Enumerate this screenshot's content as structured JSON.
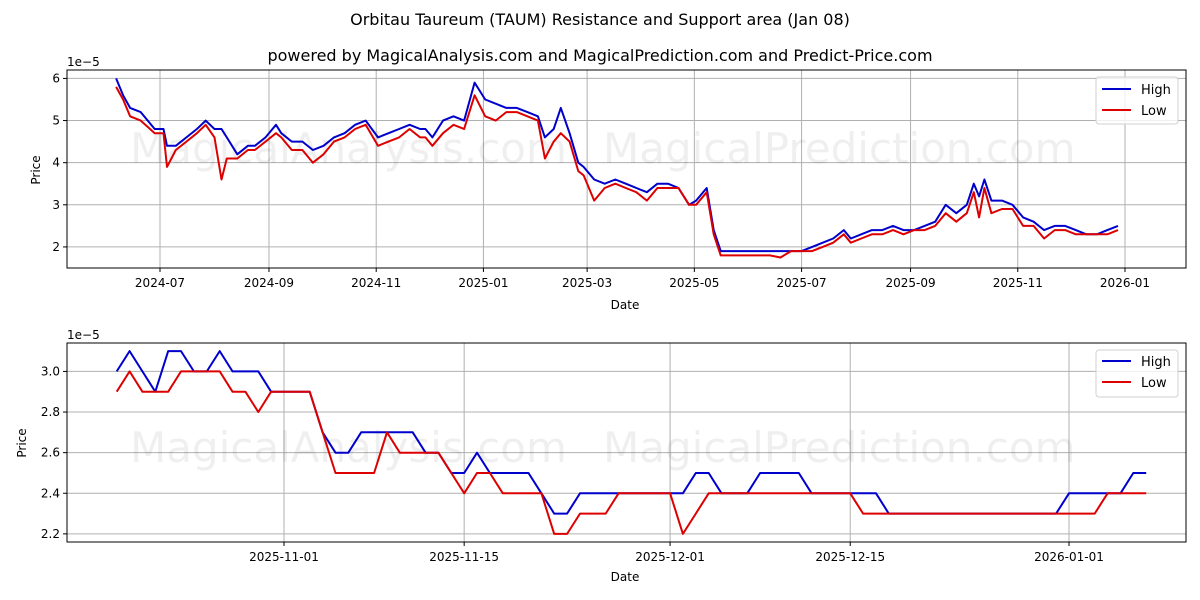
{
  "header": {
    "title": "Orbitau Taureum (TAUM) Resistance and Support area (Jan 08)",
    "subtitle": "powered by MagicalAnalysis.com and MagicalPrediction.com and Predict-Price.com"
  },
  "watermarks": [
    "MagicalAnalysis.com",
    "MagicalPrediction.com"
  ],
  "colors": {
    "high": "#0000cc",
    "low": "#dd0000",
    "grid": "#b0b0b0"
  },
  "chart_data": [
    {
      "type": "line",
      "title": "Orbitau Taureum (TAUM) Resistance and Support area (Jan 08)",
      "subtitle": "powered by MagicalAnalysis.com and MagicalPrediction.com and Predict-Price.com",
      "xlabel": "Date",
      "ylabel": "Price",
      "y_scale_label": "1e−5",
      "ylim": [
        1.5,
        6.2
      ],
      "yticks": [
        2,
        3,
        4,
        5,
        6
      ],
      "ytick_labels": [
        "2",
        "3",
        "4",
        "5",
        "6"
      ],
      "xticks": [
        "2024-07",
        "2024-09",
        "2024-11",
        "2025-01",
        "2025-03",
        "2025-05",
        "2025-07",
        "2025-09",
        "2025-11",
        "2026-01"
      ],
      "grid": true,
      "legend": {
        "position": "upper right",
        "entries": [
          "High",
          "Low"
        ]
      },
      "x": [
        "2024-06-06",
        "2024-06-10",
        "2024-06-14",
        "2024-06-20",
        "2024-06-28",
        "2024-07-03",
        "2024-07-05",
        "2024-07-10",
        "2024-07-16",
        "2024-07-22",
        "2024-07-27",
        "2024-08-01",
        "2024-08-05",
        "2024-08-08",
        "2024-08-14",
        "2024-08-20",
        "2024-08-24",
        "2024-08-30",
        "2024-09-05",
        "2024-09-08",
        "2024-09-14",
        "2024-09-20",
        "2024-09-26",
        "2024-10-02",
        "2024-10-08",
        "2024-10-14",
        "2024-10-20",
        "2024-10-26",
        "2024-11-02",
        "2024-11-08",
        "2024-11-14",
        "2024-11-20",
        "2024-11-26",
        "2024-11-29",
        "2024-12-03",
        "2024-12-09",
        "2024-12-15",
        "2024-12-21",
        "2024-12-27",
        "2025-01-02",
        "2025-01-08",
        "2025-01-14",
        "2025-01-20",
        "2025-01-26",
        "2025-02-01",
        "2025-02-05",
        "2025-02-10",
        "2025-02-14",
        "2025-02-19",
        "2025-02-24",
        "2025-02-27",
        "2025-03-05",
        "2025-03-11",
        "2025-03-17",
        "2025-03-23",
        "2025-03-29",
        "2025-04-04",
        "2025-04-10",
        "2025-04-16",
        "2025-04-22",
        "2025-04-28",
        "2025-05-02",
        "2025-05-08",
        "2025-05-12",
        "2025-05-16",
        "2025-05-20",
        "2025-05-26",
        "2025-06-01",
        "2025-06-07",
        "2025-06-13",
        "2025-06-19",
        "2025-06-25",
        "2025-07-01",
        "2025-07-07",
        "2025-07-13",
        "2025-07-19",
        "2025-07-25",
        "2025-07-29",
        "2025-08-04",
        "2025-08-10",
        "2025-08-16",
        "2025-08-22",
        "2025-08-28",
        "2025-09-03",
        "2025-09-09",
        "2025-09-15",
        "2025-09-21",
        "2025-09-27",
        "2025-10-03",
        "2025-10-07",
        "2025-10-10",
        "2025-10-13",
        "2025-10-17",
        "2025-10-23",
        "2025-10-29",
        "2025-11-04",
        "2025-11-10",
        "2025-11-16",
        "2025-11-22",
        "2025-11-28",
        "2025-12-04",
        "2025-12-10",
        "2025-12-16",
        "2025-12-22",
        "2025-12-28",
        "2026-01-03",
        "2026-01-07"
      ],
      "series": [
        {
          "name": "High",
          "color": "#0000cc",
          "values": [
            6.0,
            5.6,
            5.3,
            5.2,
            4.8,
            4.8,
            4.4,
            4.4,
            4.6,
            4.8,
            5.0,
            4.8,
            4.8,
            4.6,
            4.2,
            4.4,
            4.4,
            4.6,
            4.9,
            4.7,
            4.5,
            4.5,
            4.3,
            4.4,
            4.6,
            4.7,
            4.9,
            5.0,
            4.6,
            4.7,
            4.8,
            4.9,
            4.8,
            4.8,
            4.6,
            5.0,
            5.1,
            5.0,
            5.9,
            5.5,
            5.4,
            5.3,
            5.3,
            5.2,
            5.1,
            4.6,
            4.8,
            5.3,
            4.7,
            4.0,
            3.9,
            3.6,
            3.5,
            3.6,
            3.5,
            3.4,
            3.3,
            3.5,
            3.5,
            3.4,
            3.0,
            3.1,
            3.4,
            2.4,
            1.9,
            1.9,
            1.9,
            1.9,
            1.9,
            1.9,
            1.9,
            1.9,
            1.9,
            2.0,
            2.1,
            2.2,
            2.4,
            2.2,
            2.3,
            2.4,
            2.4,
            2.5,
            2.4,
            2.4,
            2.5,
            2.6,
            3.0,
            2.8,
            3.0,
            3.5,
            3.2,
            3.6,
            3.1,
            3.1,
            3.0,
            2.7,
            2.6,
            2.4,
            2.5,
            2.5,
            2.4,
            2.3,
            2.3,
            2.4,
            2.5
          ]
        },
        {
          "name": "Low",
          "color": "#dd0000",
          "values": [
            5.8,
            5.5,
            5.1,
            5.0,
            4.7,
            4.7,
            3.9,
            4.3,
            4.5,
            4.7,
            4.9,
            4.6,
            3.6,
            4.1,
            4.1,
            4.3,
            4.3,
            4.5,
            4.7,
            4.6,
            4.3,
            4.3,
            4.0,
            4.2,
            4.5,
            4.6,
            4.8,
            4.9,
            4.4,
            4.5,
            4.6,
            4.8,
            4.6,
            4.6,
            4.4,
            4.7,
            4.9,
            4.8,
            5.6,
            5.1,
            5.0,
            5.2,
            5.2,
            5.1,
            5.0,
            4.1,
            4.5,
            4.7,
            4.5,
            3.8,
            3.7,
            3.1,
            3.4,
            3.5,
            3.4,
            3.3,
            3.1,
            3.4,
            3.4,
            3.4,
            3.0,
            3.0,
            3.3,
            2.3,
            1.8,
            1.8,
            1.8,
            1.8,
            1.8,
            1.8,
            1.75,
            1.9,
            1.9,
            1.9,
            2.0,
            2.1,
            2.3,
            2.1,
            2.2,
            2.3,
            2.3,
            2.4,
            2.3,
            2.4,
            2.4,
            2.5,
            2.8,
            2.6,
            2.8,
            3.3,
            2.7,
            3.4,
            2.8,
            2.9,
            2.9,
            2.5,
            2.5,
            2.2,
            2.4,
            2.4,
            2.3,
            2.3,
            2.3,
            2.3,
            2.4
          ]
        }
      ]
    },
    {
      "type": "line",
      "xlabel": "Date",
      "ylabel": "Price",
      "y_scale_label": "1e−5",
      "ylim": [
        2.16,
        3.14
      ],
      "yticks": [
        2.2,
        2.4,
        2.6,
        2.8,
        3.0
      ],
      "ytick_labels": [
        "2.2",
        "2.4",
        "2.6",
        "2.8",
        "3.0"
      ],
      "xticks": [
        "2025-11-01",
        "2025-11-15",
        "2025-12-01",
        "2025-12-15",
        "2026-01-01"
      ],
      "grid": true,
      "legend": {
        "position": "upper right",
        "entries": [
          "High",
          "Low"
        ]
      },
      "x_start": "2025-10-19",
      "x_end": "2026-01-07",
      "series": [
        {
          "name": "High",
          "color": "#0000cc",
          "values": [
            3.0,
            3.1,
            3.0,
            2.9,
            3.1,
            3.1,
            3.0,
            3.0,
            3.1,
            3.0,
            3.0,
            3.0,
            2.9,
            2.9,
            2.9,
            2.9,
            2.7,
            2.6,
            2.6,
            2.7,
            2.7,
            2.7,
            2.7,
            2.7,
            2.6,
            2.6,
            2.5,
            2.5,
            2.6,
            2.5,
            2.5,
            2.5,
            2.5,
            2.4,
            2.3,
            2.3,
            2.4,
            2.4,
            2.4,
            2.4,
            2.4,
            2.4,
            2.4,
            2.4,
            2.4,
            2.5,
            2.5,
            2.4,
            2.4,
            2.4,
            2.5,
            2.5,
            2.5,
            2.5,
            2.4,
            2.4,
            2.4,
            2.4,
            2.4,
            2.4,
            2.3,
            2.3,
            2.3,
            2.3,
            2.3,
            2.3,
            2.3,
            2.3,
            2.3,
            2.3,
            2.3,
            2.3,
            2.3,
            2.3,
            2.4,
            2.4,
            2.4,
            2.4,
            2.4,
            2.5,
            2.5
          ]
        },
        {
          "name": "Low",
          "color": "#dd0000",
          "values": [
            2.9,
            3.0,
            2.9,
            2.9,
            2.9,
            3.0,
            3.0,
            3.0,
            3.0,
            2.9,
            2.9,
            2.8,
            2.9,
            2.9,
            2.9,
            2.9,
            2.7,
            2.5,
            2.5,
            2.5,
            2.5,
            2.7,
            2.6,
            2.6,
            2.6,
            2.6,
            2.5,
            2.4,
            2.5,
            2.5,
            2.4,
            2.4,
            2.4,
            2.4,
            2.2,
            2.2,
            2.3,
            2.3,
            2.3,
            2.4,
            2.4,
            2.4,
            2.4,
            2.4,
            2.2,
            2.3,
            2.4,
            2.4,
            2.4,
            2.4,
            2.4,
            2.4,
            2.4,
            2.4,
            2.4,
            2.4,
            2.4,
            2.4,
            2.3,
            2.3,
            2.3,
            2.3,
            2.3,
            2.3,
            2.3,
            2.3,
            2.3,
            2.3,
            2.3,
            2.3,
            2.3,
            2.3,
            2.3,
            2.3,
            2.3,
            2.3,
            2.3,
            2.4,
            2.4,
            2.4,
            2.4
          ]
        }
      ]
    }
  ]
}
